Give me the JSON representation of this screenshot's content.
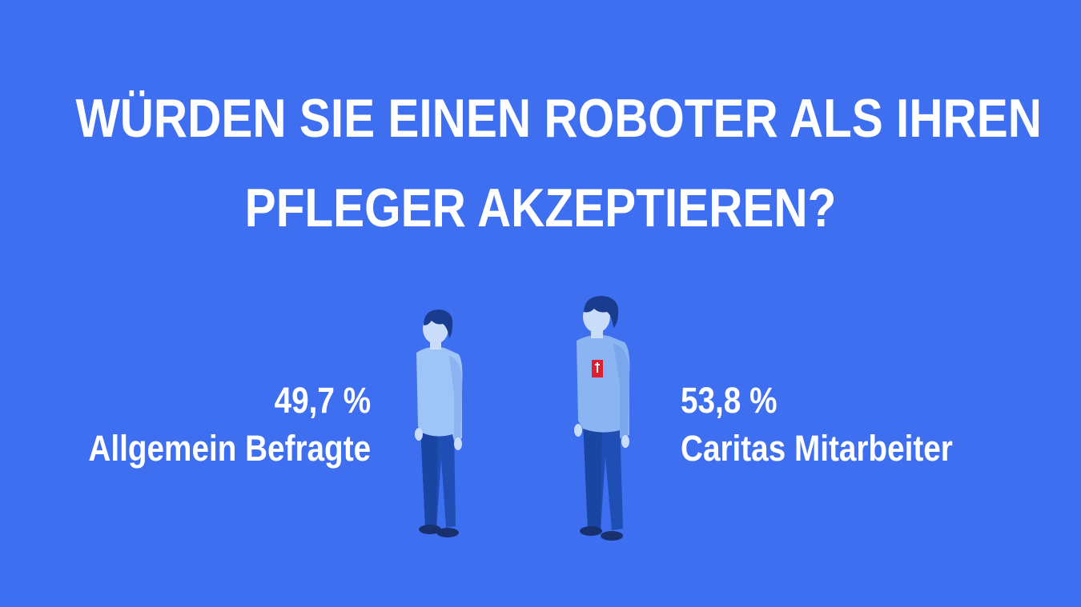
{
  "title": {
    "line1": "WÜRDEN SIE EINEN ROBOTER ALS IHREN",
    "line2": "PFLEGER AKZEPTIEREN?"
  },
  "groups": [
    {
      "percent": "49,7 %",
      "label": "Allgemein Befragte"
    },
    {
      "percent": "53,8 %",
      "label": "Caritas Mitarbeiter"
    }
  ],
  "colors": {
    "background": "#3d6ff0",
    "text": "#ffffff",
    "shirt_left": "#9fc4f8",
    "shirt_right": "#8bb4f2",
    "pants": "#1f4fb5",
    "hair": "#1a3c8f",
    "skin": "#c9ddfb",
    "badge": "#e01e2d"
  }
}
